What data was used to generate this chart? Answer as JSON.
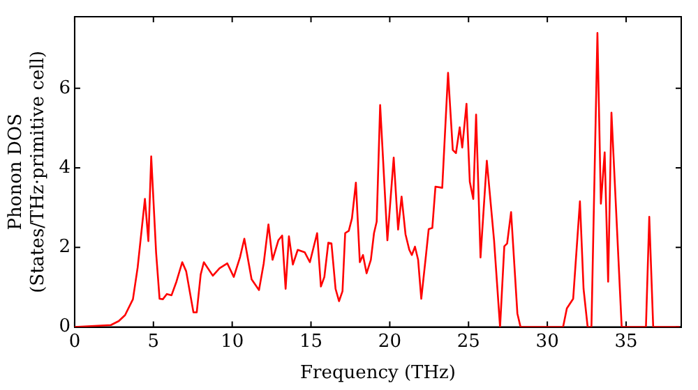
{
  "chart_data": {
    "type": "line",
    "xlabel": "Frequency (THz)",
    "ylabel": "Phonon DOS\n(States/THz·primitive cell)",
    "x": [
      0,
      2.3,
      2.8,
      3.2,
      3.7,
      4.0,
      4.46,
      4.68,
      4.86,
      5.17,
      5.39,
      5.6,
      5.85,
      6.15,
      6.46,
      6.83,
      7.08,
      7.54,
      7.75,
      8.0,
      8.2,
      8.77,
      9.2,
      9.69,
      10.1,
      10.5,
      10.77,
      11.23,
      11.7,
      12.0,
      12.3,
      12.56,
      12.93,
      13.17,
      13.39,
      13.6,
      13.85,
      14.16,
      14.6,
      14.93,
      15.39,
      15.63,
      15.85,
      16.1,
      16.3,
      16.56,
      16.78,
      17.0,
      17.17,
      17.4,
      17.6,
      17.85,
      18.1,
      18.3,
      18.53,
      18.8,
      19.0,
      19.17,
      19.39,
      19.85,
      20.25,
      20.53,
      20.75,
      21.0,
      21.24,
      21.4,
      21.6,
      21.8,
      22.0,
      22.3,
      22.47,
      22.7,
      22.9,
      23.33,
      23.7,
      24.0,
      24.2,
      24.44,
      24.6,
      24.87,
      25.08,
      25.3,
      25.48,
      25.76,
      26.16,
      26.62,
      27.0,
      27.27,
      27.45,
      27.7,
      28.1,
      28.3,
      31.0,
      31.24,
      31.64,
      32.07,
      32.3,
      32.56,
      32.8,
      33.18,
      33.4,
      33.64,
      33.86,
      34.07,
      34.72,
      36.26,
      36.47,
      36.72,
      38.4
    ],
    "series": [
      {
        "color": "#ff0000",
        "values": [
          0,
          0.05,
          0.15,
          0.3,
          0.7,
          1.5,
          3.22,
          2.16,
          4.29,
          1.87,
          0.71,
          0.7,
          0.83,
          0.8,
          1.14,
          1.63,
          1.4,
          0.37,
          0.37,
          1.32,
          1.63,
          1.29,
          1.48,
          1.6,
          1.26,
          1.76,
          2.22,
          1.2,
          0.93,
          1.6,
          2.58,
          1.69,
          2.18,
          2.3,
          0.96,
          2.28,
          1.57,
          1.94,
          1.88,
          1.63,
          2.36,
          1.02,
          1.26,
          2.12,
          2.1,
          0.96,
          0.65,
          0.9,
          2.36,
          2.42,
          2.73,
          3.63,
          1.63,
          1.81,
          1.35,
          1.69,
          2.36,
          2.65,
          5.58,
          2.18,
          4.26,
          2.45,
          3.28,
          2.33,
          1.94,
          1.81,
          2.02,
          1.69,
          0.71,
          1.81,
          2.46,
          2.49,
          3.53,
          3.5,
          6.39,
          4.45,
          4.37,
          5.02,
          4.51,
          5.61,
          3.65,
          3.22,
          5.34,
          1.75,
          4.18,
          2.18,
          0,
          2.03,
          2.1,
          2.89,
          0.34,
          0,
          0,
          0.47,
          0.71,
          3.16,
          0.96,
          0,
          0,
          7.39,
          3.1,
          4.39,
          1.14,
          5.39,
          0,
          0,
          2.77,
          0,
          0
        ]
      }
    ],
    "xlim": [
      0,
      38.5
    ],
    "ylim": [
      0,
      7.8
    ],
    "xticks": [
      0,
      5,
      10,
      15,
      20,
      25,
      30,
      35
    ],
    "yticks": [
      0,
      2,
      4,
      6
    ],
    "grid": false,
    "legend": false,
    "marker": "none",
    "line_style": "solid"
  }
}
